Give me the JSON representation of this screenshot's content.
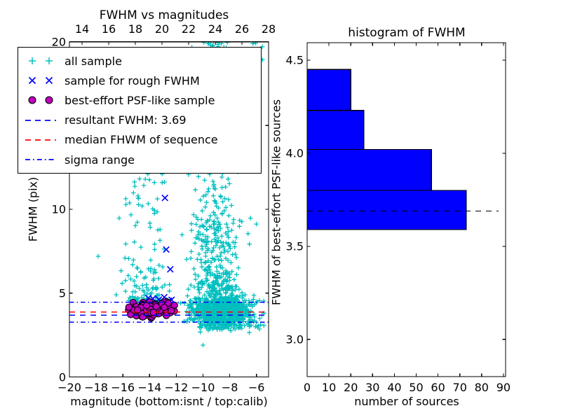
{
  "figure": {
    "background": "#ffffff"
  },
  "left_plot": {
    "title": "FWHM vs magnitudes",
    "xlabel": "magnitude (bottom:isnt / top:calib)",
    "ylabel": "FWHM (pix)",
    "bottom_ticks": [
      -20,
      -18,
      -16,
      -14,
      -12,
      -10,
      -8,
      -6
    ],
    "top_ticks": [
      14,
      16,
      18,
      20,
      22,
      24,
      26,
      28
    ],
    "y_ticks": [
      0,
      5,
      10,
      15,
      20
    ]
  },
  "right_plot": {
    "title": "histogram of FWHM",
    "xlabel": "number of sources",
    "ylabel": "FWHM of best-effort PSF-like sources",
    "x_ticks": [
      0,
      10,
      20,
      30,
      40,
      50,
      60,
      70,
      80,
      90
    ],
    "y_tick_labels": [
      "3.0",
      "3.5",
      "4.0",
      "4.5"
    ]
  },
  "legend": {
    "entries": [
      {
        "label": "all sample",
        "type": "marker",
        "marker": "plus",
        "color": "#00bfbf"
      },
      {
        "label": "sample for rough FWHM",
        "type": "marker",
        "marker": "x",
        "color": "#0000ff"
      },
      {
        "label": "best-effort PSF-like sample",
        "type": "marker",
        "marker": "circle",
        "color": "#bf00bf",
        "edge_color": "#000000"
      },
      {
        "label": "resultant FWHM: 3.69",
        "type": "line",
        "dash": "dashed",
        "color": "#0000ff"
      },
      {
        "label": "median FHWM of sequence",
        "type": "line",
        "dash": "dashed",
        "color": "#ff0000"
      },
      {
        "label": "sigma range",
        "type": "line",
        "dash": "dashdot",
        "color": "#0000ff"
      }
    ]
  },
  "chart_data": [
    {
      "type": "scatter",
      "title": "FWHM vs magnitudes",
      "xlabel": "magnitude (bottom:isnt / top:calib)",
      "ylabel": "FWHM (pix)",
      "xlim_bottom": [
        -20,
        -5.1
      ],
      "xlim_top": [
        13.05,
        28
      ],
      "ylim": [
        0,
        20
      ],
      "x_ticks_bottom": [
        -20,
        -18,
        -16,
        -14,
        -12,
        -10,
        -8,
        -6
      ],
      "x_ticks_top": [
        14,
        16,
        18,
        20,
        22,
        24,
        26,
        28
      ],
      "y_ticks": [
        0,
        5,
        10,
        15,
        20
      ],
      "series": [
        {
          "name": "all sample",
          "marker": "plus",
          "color": "#00bfbf",
          "clusters": [
            {
              "n": 950,
              "x": {
                "dist": "normal",
                "mu": -8.7,
                "sd": 1.05,
                "min": -11.9,
                "max": -5.16
              },
              "y": {
                "dist": "normal",
                "mu": 3.95,
                "sd": 0.5,
                "min": 2.9,
                "max": 5.6
              }
            },
            {
              "n": 230,
              "x": {
                "dist": "normal",
                "mu": -9.0,
                "sd": 0.95,
                "min": -11.6,
                "max": -5.6
              },
              "y": {
                "dist": "power",
                "min": 5.2,
                "max": 9.5,
                "exp": 1.7
              }
            },
            {
              "n": 150,
              "x": {
                "dist": "normal",
                "mu": -9.1,
                "sd": 0.9,
                "min": -11.4,
                "max": -6.2
              },
              "y": {
                "dist": "power",
                "min": 8,
                "max": 20,
                "exp": 1.6
              }
            },
            {
              "n": 10,
              "x": {
                "dist": "uniform",
                "min": -9.8,
                "max": -8.2
              },
              "y": {
                "dist": "uniform",
                "min": 19.6,
                "max": 20
              }
            },
            {
              "n": 6,
              "x": {
                "dist": "uniform",
                "min": -6.3,
                "max": -5.4
              },
              "y": {
                "dist": "uniform",
                "min": 18.8,
                "max": 20
              }
            },
            {
              "n": 70,
              "x": {
                "dist": "normal",
                "mu": -8.3,
                "sd": 1.5,
                "min": -11.8,
                "max": -5.2
              },
              "y": {
                "dist": "normal",
                "mu": 3.1,
                "sd": 0.17,
                "min": 2.55,
                "max": 3.45
              }
            },
            {
              "n": 140,
              "x": {
                "dist": "normal",
                "mu": -14.2,
                "sd": 1.05,
                "min": -16.35,
                "max": -12.25
              },
              "y": {
                "dist": "power",
                "min": 4.55,
                "max": 13.2,
                "exp": 2.3
              }
            }
          ],
          "extra_points": [
            [
              -17.85,
              7.2
            ],
            [
              -10.0,
              1.9
            ],
            [
              -16.5,
              4.9
            ]
          ]
        },
        {
          "name": "sample for rough FWHM",
          "marker": "x",
          "color": "#0000ff",
          "points": [
            [
              -12.85,
              10.68
            ],
            [
              -12.75,
              7.6
            ],
            [
              -12.45,
              6.42
            ],
            [
              -13.75,
              4.67
            ],
            [
              -13.3,
              4.62
            ],
            [
              -12.9,
              4.76
            ],
            [
              -12.35,
              4.6
            ],
            [
              -14.1,
              4.7
            ],
            [
              -12.55,
              4.55
            ]
          ]
        },
        {
          "name": "best-effort PSF-like sample",
          "marker": "circle",
          "color": "#bf00bf",
          "edge_color": "#000000",
          "clusters": [
            {
              "n": 95,
              "x": {
                "dist": "normal",
                "mu": -13.85,
                "sd": 0.85,
                "min": -15.6,
                "max": -12.1
              },
              "y": {
                "dist": "normal",
                "mu": 4.03,
                "sd": 0.26,
                "min": 3.45,
                "max": 4.6
              }
            }
          ]
        }
      ],
      "lines": [
        {
          "name": "resultant FWHM",
          "value": 3.69,
          "style": "dashed",
          "color": "#0000ff"
        },
        {
          "name": "median FHWM of sequence",
          "value": 3.87,
          "style": "dashed",
          "color": "#ff0000"
        },
        {
          "name": "sigma range",
          "values": [
            3.26,
            4.46
          ],
          "style": "dashdot",
          "color": "#0000ff"
        }
      ]
    },
    {
      "type": "bar",
      "orientation": "horizontal",
      "title": "histogram of FWHM",
      "xlabel": "number of sources",
      "ylabel": "FWHM of best-effort PSF-like sources",
      "bin_edges": [
        3.59,
        3.8,
        4.02,
        4.23,
        4.45
      ],
      "counts": [
        73,
        57,
        26,
        20
      ],
      "bar_color": "#0000ff",
      "bar_edge_color": "#000000",
      "dashed_line": {
        "value": 3.69,
        "color": "#000000",
        "style": "dashed"
      },
      "x_ticks": [
        0,
        10,
        20,
        30,
        40,
        50,
        60,
        70,
        80,
        90
      ],
      "y_ticks": [
        3.0,
        3.5,
        4.0,
        4.5
      ],
      "xlim": [
        0,
        91
      ],
      "ylim": [
        2.8,
        4.59
      ]
    }
  ]
}
